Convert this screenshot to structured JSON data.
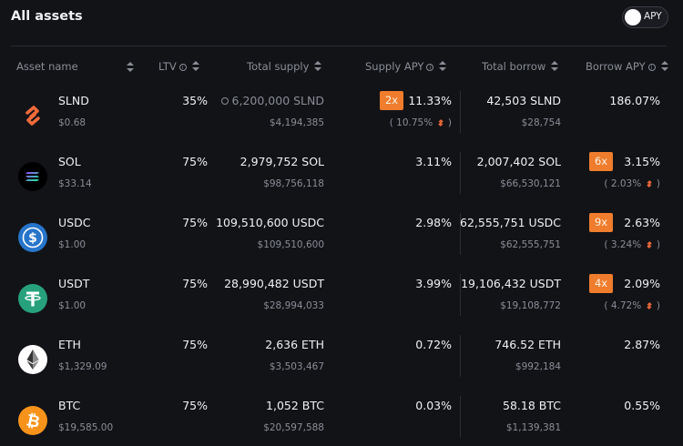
{
  "page": {
    "title": "All assets",
    "toggle_label": "APY"
  },
  "headers": {
    "asset_name": "Asset name",
    "ltv": "LTV",
    "total_supply": "Total supply",
    "supply_apy": "Supply APY",
    "total_borrow": "Total borrow",
    "borrow_apy": "Borrow APY"
  },
  "colors": {
    "background": "#121317",
    "accent_badge": "#ef7d2d",
    "muted": "#8a8d96"
  },
  "assets": [
    {
      "icon": "slnd-icon",
      "symbol": "SLND",
      "price": "$0.68",
      "ltv": "35%",
      "total_supply": "6,200,000 SLND",
      "total_supply_usd": "$4,194,385",
      "supply_apy": "11.33%",
      "supply_multiplier": "2x",
      "supply_base": "( 10.75%",
      "supply_base_end": " )",
      "total_borrow": "42,503 SLND",
      "total_borrow_usd": "$28,754",
      "borrow_apy": "186.07%"
    },
    {
      "icon": "sol-icon",
      "symbol": "SOL",
      "price": "$33.14",
      "ltv": "75%",
      "total_supply": "2,979,752 SOL",
      "total_supply_usd": "$98,756,118",
      "supply_apy": "3.11%",
      "total_borrow": "2,007,402 SOL",
      "total_borrow_usd": "$66,530,121",
      "borrow_apy": "3.15%",
      "borrow_multiplier": "6x",
      "borrow_base": "( 2.03%",
      "borrow_base_end": " )"
    },
    {
      "icon": "usdc-icon",
      "symbol": "USDC",
      "price": "$1.00",
      "ltv": "75%",
      "total_supply": "109,510,600 USDC",
      "total_supply_usd": "$109,510,600",
      "supply_apy": "2.98%",
      "total_borrow": "62,555,751 USDC",
      "total_borrow_usd": "$62,555,751",
      "borrow_apy": "2.63%",
      "borrow_multiplier": "9x",
      "borrow_base": "( 3.24%",
      "borrow_base_end": " )"
    },
    {
      "icon": "usdt-icon",
      "symbol": "USDT",
      "price": "$1.00",
      "ltv": "75%",
      "total_supply": "28,990,482 USDT",
      "total_supply_usd": "$28,994,033",
      "supply_apy": "3.99%",
      "total_borrow": "19,106,432 USDT",
      "total_borrow_usd": "$19,108,772",
      "borrow_apy": "2.09%",
      "borrow_multiplier": "4x",
      "borrow_base": "( 4.72%",
      "borrow_base_end": " )"
    },
    {
      "icon": "eth-icon",
      "symbol": "ETH",
      "price": "$1,329.09",
      "ltv": "75%",
      "total_supply": "2,636 ETH",
      "total_supply_usd": "$3,503,467",
      "supply_apy": "0.72%",
      "total_borrow": "746.52 ETH",
      "total_borrow_usd": "$992,184",
      "borrow_apy": "2.87%"
    },
    {
      "icon": "btc-icon",
      "symbol": "BTC",
      "price": "$19,585.00",
      "ltv": "75%",
      "total_supply": "1,052 BTC",
      "total_supply_usd": "$20,597,588",
      "supply_apy": "0.03%",
      "total_borrow": "58.18 BTC",
      "total_borrow_usd": "$1,139,381",
      "borrow_apy": "0.55%"
    }
  ]
}
